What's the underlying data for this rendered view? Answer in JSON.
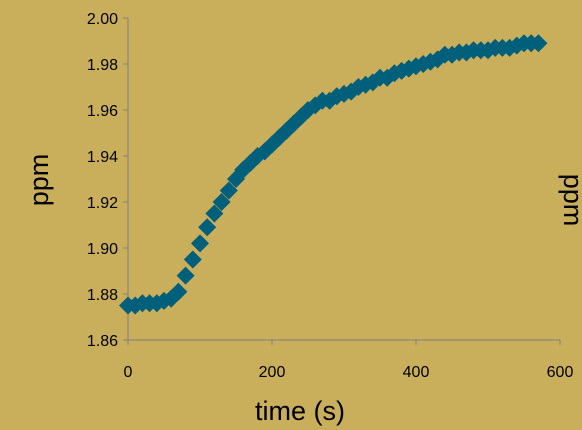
{
  "chart_data": {
    "type": "scatter",
    "title": "",
    "xlabel": "time (s)",
    "ylabel": "ppm",
    "xlim": [
      0,
      600
    ],
    "ylim": [
      1.86,
      2.0
    ],
    "x_ticks": [
      "0",
      "200",
      "400",
      "600"
    ],
    "y_ticks": [
      "1.86",
      "1.88",
      "1.90",
      "1.92",
      "1.94",
      "1.96",
      "1.98",
      "2.00"
    ],
    "grid": false,
    "legend": "none",
    "marker": "diamond",
    "marker_color": "#005f7a",
    "background_color": "#c9ae5b",
    "clipped_label_right": "ppm",
    "series": [
      {
        "x": [
          0,
          10,
          20,
          30,
          40,
          50,
          60,
          70,
          80,
          90,
          100,
          110,
          120,
          130,
          140,
          150,
          160,
          170,
          180,
          190,
          200,
          210,
          220,
          230,
          240,
          250,
          260,
          270,
          280,
          290,
          300,
          310,
          320,
          330,
          340,
          350,
          360,
          370,
          380,
          390,
          400,
          410,
          420,
          430,
          440,
          450,
          460,
          470,
          480,
          490,
          500,
          510,
          520,
          530,
          540,
          550,
          560,
          570
        ],
        "y": [
          1.875,
          1.875,
          1.876,
          1.876,
          1.876,
          1.877,
          1.878,
          1.881,
          1.888,
          1.895,
          1.902,
          1.909,
          1.915,
          1.92,
          1.925,
          1.93,
          1.934,
          1.937,
          1.94,
          1.942,
          1.945,
          1.948,
          1.951,
          1.954,
          1.957,
          1.96,
          1.962,
          1.964,
          1.964,
          1.966,
          1.967,
          1.968,
          1.97,
          1.971,
          1.972,
          1.974,
          1.974,
          1.976,
          1.977,
          1.978,
          1.979,
          1.98,
          1.981,
          1.982,
          1.984,
          1.984,
          1.985,
          1.985,
          1.986,
          1.986,
          1.986,
          1.987,
          1.987,
          1.987,
          1.988,
          1.989,
          1.989,
          1.989
        ]
      }
    ]
  }
}
